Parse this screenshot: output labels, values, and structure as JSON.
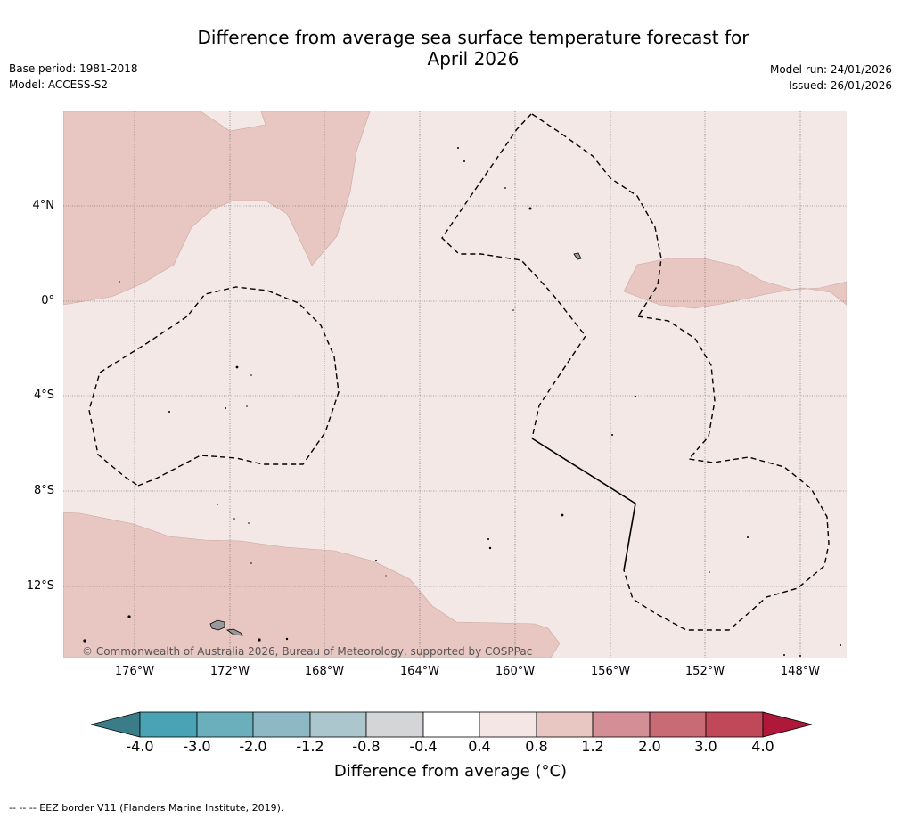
{
  "title_line1": "Difference from average sea surface temperature forecast for",
  "title_line2": "April 2026",
  "base_period": "Base period: 1981-2018",
  "model": "Model: ACCESS-S2",
  "model_run": "Model run: 24/01/2026",
  "issued": "Issued: 26/01/2026",
  "lat_labels": [
    "4°N",
    "0°",
    "4°S",
    "8°S",
    "12°S"
  ],
  "lon_labels": [
    "176°W",
    "172°W",
    "168°W",
    "164°W",
    "160°W",
    "156°W",
    "152°W",
    "148°W"
  ],
  "copyright": "© Commonwealth of Australia 2026, Bureau of Meteorology, supported by COSPPac",
  "colorbar": {
    "title": "Difference from average (°C)",
    "ticks": [
      "-4.0",
      "-3.0",
      "-2.0",
      "-1.2",
      "-0.8",
      "-0.4",
      "0.4",
      "0.8",
      "1.2",
      "2.0",
      "3.0",
      "4.0"
    ],
    "colors": [
      "#4aa3b4",
      "#6bafbd",
      "#8eb9c4",
      "#abc6cc",
      "#d3d5d7",
      "#ffffff",
      "#f4e6e4",
      "#e8c6c1",
      "#d48e95",
      "#c86b75",
      "#c04858"
    ],
    "low_extend_color": "#3a7d88",
    "high_extend_color": "#b0183a"
  },
  "footnote": "--  --  -- EEZ border V11 (Flanders Marine Institute, 2019).",
  "colors": {
    "light_anomaly": "#f4e8e6",
    "mid_anomaly": "#e8c7c2",
    "land": "#999999"
  }
}
